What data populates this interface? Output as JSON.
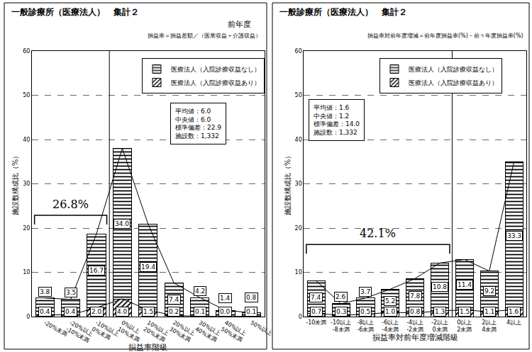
{
  "chart_data": [
    {
      "type": "bar",
      "title": "一般診療所（医療法人）　集計２",
      "period": "前年度",
      "subtitle": "損益率＝損益差額／（医業収益＋介護収益）",
      "x_label": "損益率階級",
      "y_label": "施設数構成比（%）",
      "categories": [
        "-20%未満",
        "-20%以上 -10%未満",
        "-10%以上 0%未満",
        "0%以上 10%未満",
        "10%以上 20%未満",
        "20%以上 30%未満",
        "30%以上 40%未満",
        "40%以上 50%未満",
        "50%以上"
      ],
      "series": [
        {
          "name": "医療法人（入院診療収益なし）",
          "color": "#000000",
          "marker": "horizontal_hatch",
          "values": [
            3.8,
            3.5,
            16.7,
            34.0,
            19.4,
            7.4,
            4.2,
            1.4,
            0.8
          ],
          "value_labels": [
            "3.8",
            "3.5",
            "16.7",
            "34.0",
            "19.4",
            "7.4",
            "4.2",
            "1.4",
            "0.8"
          ]
        },
        {
          "name": "医療法人（入院診療収益あり）",
          "color": "#000000",
          "marker": "diagonal_hatch",
          "values": [
            0.4,
            0.4,
            2.0,
            4.0,
            1.5,
            0.2,
            0.1,
            0.0,
            0.1
          ],
          "value_labels": [
            "0.4",
            "0.4",
            "2.0",
            "4.0",
            "1.5",
            "0.2",
            "0.1",
            "0.0",
            "0.1"
          ]
        }
      ],
      "stacked": true,
      "data_labels": true,
      "ylim": [
        0,
        60
      ],
      "yticks": [
        0,
        10,
        20,
        30,
        40,
        50,
        60
      ],
      "grid": true,
      "legend": "upper right",
      "stats": [
        "平均値：6.0",
        "中央値：6.0",
        "標準偏差：22.9",
        "施設数：1,332"
      ],
      "bracket": {
        "label": "26.8%",
        "from": "-20%未満",
        "to": "-10%以上 0%未満"
      }
    },
    {
      "type": "bar",
      "title": "一般診療所（医療法人）　集計２",
      "subtitle": "損益率対前年度増減＝前年度損益率(%)－前々年度損益率(%)",
      "x_label": "損益率対前年度増減階級",
      "y_label": "施設数構成比（%）",
      "categories": [
        "-10未満",
        "-10以上 -8未満",
        "-8以上 -6未満",
        "-6以上 -4未満",
        "-4以上 -2未満",
        "-2以上 0未満",
        "0以上 2未満",
        "2以上 4未満",
        "4以上"
      ],
      "series": [
        {
          "name": "医療法人（入院診療収益なし）",
          "color": "#000000",
          "marker": "horizontal_hatch",
          "values": [
            7.4,
            2.6,
            3.7,
            5.2,
            7.8,
            10.8,
            11.4,
            9.2,
            33.3
          ],
          "value_labels": [
            "7.4",
            "2.6",
            "3.7",
            "5.2",
            "7.8",
            "10.8",
            "11.4",
            "9.2",
            "33.3"
          ]
        },
        {
          "name": "医療法人（入院診療収益あり）",
          "color": "#000000",
          "marker": "diagonal_hatch",
          "values": [
            0.7,
            0.3,
            0.5,
            1.0,
            0.8,
            1.3,
            1.5,
            1.1,
            1.6
          ],
          "value_labels": [
            "0.7",
            "0.3",
            "0.5",
            "1.0",
            "0.8",
            "1.3",
            "1.5",
            "1.1",
            "1.6"
          ]
        }
      ],
      "stacked": true,
      "data_labels": true,
      "ylim": [
        0,
        60
      ],
      "yticks": [
        0,
        10,
        20,
        30,
        40,
        50,
        60
      ],
      "grid": true,
      "legend": "upper right",
      "stats": [
        "平均値：1.6",
        "中央値：1.2",
        "標準偏差：14.0",
        "施設数：1,332"
      ],
      "bracket": {
        "label": "42.1%",
        "from": "-10未満",
        "to": "-2以上 0未満"
      }
    }
  ]
}
